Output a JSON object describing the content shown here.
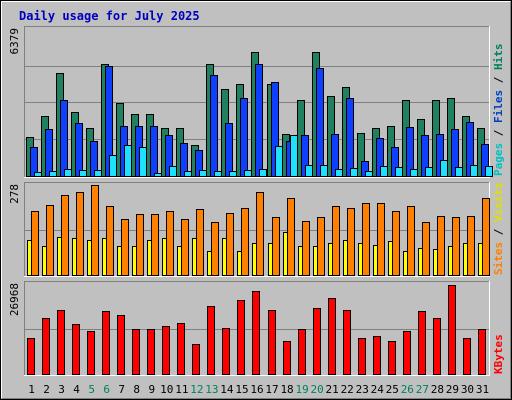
{
  "chart_data": {
    "type": "bar",
    "title": "Daily usage for July 2025",
    "days": [
      "1",
      "2",
      "3",
      "4",
      "5",
      "6",
      "7",
      "8",
      "9",
      "10",
      "11",
      "12",
      "13",
      "14",
      "15",
      "16",
      "17",
      "18",
      "19",
      "20",
      "21",
      "22",
      "23",
      "24",
      "25",
      "26",
      "27",
      "28",
      "29",
      "30",
      "31"
    ],
    "weekend_days": [
      "5",
      "6",
      "12",
      "13",
      "19",
      "20",
      "26",
      "27"
    ],
    "panels": [
      {
        "name": "top",
        "ymax_label": "6379",
        "ymax": 6379,
        "right_labels": [
          {
            "text": "Pages",
            "color": "#00c0c0"
          },
          {
            "text": " / ",
            "color": "#000000"
          },
          {
            "text": "Files",
            "color": "#0040c0"
          },
          {
            "text": " / ",
            "color": "#000000"
          },
          {
            "text": "Hits",
            "color": "#008060"
          }
        ],
        "series": [
          {
            "name": "Hits",
            "color": "#208060",
            "values": [
              1700,
              2600,
              4500,
              2800,
              2100,
              4900,
              3200,
              2700,
              2700,
              2100,
              2100,
              1350,
              4900,
              3800,
              4000,
              5400,
              4000,
              1850,
              3300,
              5400,
              3500,
              3900,
              1900,
              2100,
              2200,
              3300,
              2500,
              3300,
              3400,
              2600,
              2100
            ]
          },
          {
            "name": "Files",
            "color": "#1040ff",
            "values": [
              1250,
              2050,
              3300,
              2300,
              1550,
              4800,
              2200,
              2200,
              2200,
              1800,
              1450,
              1150,
              4400,
              2300,
              3400,
              4900,
              4100,
              1550,
              1800,
              4700,
              1850,
              3400,
              650,
              1650,
              1250,
              2150,
              1800,
              1850,
              2050,
              2350,
              1400
            ]
          },
          {
            "name": "Pages",
            "color": "#20e0ff",
            "values": [
              170,
              200,
              300,
              280,
              250,
              900,
              1350,
              1250,
              120,
              450,
              200,
              250,
              200,
              230,
              250,
              300,
              1300,
              1800,
              500,
              480,
              300,
              330,
              200,
              440,
              380,
              300,
              400,
              700,
              400,
              500,
              440
            ]
          }
        ]
      },
      {
        "name": "middle",
        "ymax_label": "278",
        "ymax": 278,
        "right_labels": [
          {
            "text": "Sites",
            "color": "#ff8000"
          },
          {
            "text": " / ",
            "color": "#000000"
          },
          {
            "text": "Visits",
            "color": "#e0e000"
          }
        ],
        "series": [
          {
            "name": "Visits",
            "color": "#ffff00",
            "values": [
              110,
              90,
              120,
              115,
              110,
              115,
              90,
              90,
              110,
              115,
              90,
              115,
              75,
              115,
              75,
              100,
              100,
              135,
              90,
              90,
              100,
              110,
              100,
              95,
              105,
              75,
              85,
              80,
              90,
              100,
              100
            ]
          },
          {
            "name": "Sites",
            "color": "#ff8000",
            "values": [
              200,
              220,
              250,
              260,
              280,
              215,
              175,
              190,
              190,
              200,
              175,
              205,
              165,
              195,
              210,
              260,
              180,
              240,
              170,
              180,
              215,
              210,
              225,
              225,
              200,
              215,
              165,
              185,
              180,
              185,
              240
            ]
          }
        ]
      },
      {
        "name": "bottom",
        "ymax_label": "26968",
        "ymax": 26968,
        "right_labels": [
          {
            "text": "KBytes",
            "color": "#ff0000"
          }
        ],
        "series": [
          {
            "name": "KBytes",
            "color": "#ff0000",
            "values": [
              11000,
              17000,
              19500,
              15000,
              13000,
              19000,
              18000,
              13500,
              13500,
              14500,
              15500,
              9000,
              20500,
              14000,
              22500,
              25000,
              19500,
              10000,
              13500,
              20000,
              23000,
              19500,
              11000,
              11500,
              10000,
              13000,
              19000,
              17000,
              26968,
              11000,
              13500
            ]
          }
        ]
      }
    ]
  }
}
